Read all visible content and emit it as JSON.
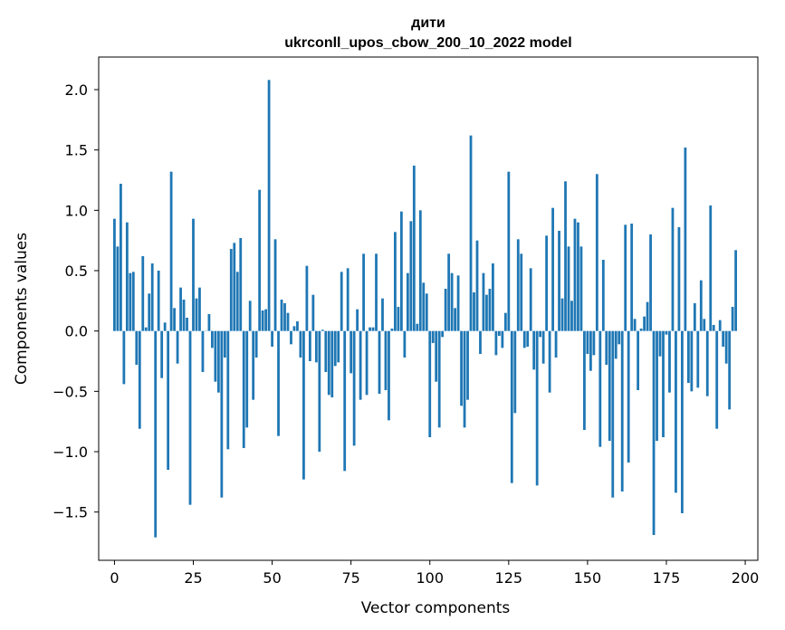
{
  "chart_data": {
    "type": "bar",
    "title": "дити",
    "subtitle": "ukrconll_upos_cbow_200_10_2022 model",
    "xlabel": "Vector components",
    "ylabel": "Components values",
    "xlim": [
      -5,
      204
    ],
    "ylim": [
      -1.9,
      2.27
    ],
    "xticks": [
      0,
      25,
      50,
      75,
      100,
      125,
      150,
      175,
      200
    ],
    "yticks": [
      -1.5,
      -1.0,
      -0.5,
      0.0,
      0.5,
      1.0,
      1.5,
      2.0
    ],
    "bar_color": "#1f77b4",
    "grid": false,
    "legend": "none",
    "values": [
      0.93,
      0.7,
      1.22,
      -0.44,
      0.9,
      0.48,
      0.49,
      -0.28,
      -0.81,
      0.62,
      0.03,
      0.31,
      0.56,
      -1.71,
      0.5,
      -0.39,
      0.07,
      -1.15,
      1.32,
      0.19,
      -0.27,
      0.36,
      0.26,
      0.11,
      -1.44,
      0.93,
      0.27,
      0.36,
      -0.34,
      0.0,
      0.14,
      -0.14,
      -0.42,
      -0.51,
      -1.38,
      -0.22,
      -0.98,
      0.68,
      0.73,
      0.49,
      0.77,
      -0.97,
      -0.8,
      0.25,
      -0.57,
      -0.22,
      1.17,
      0.17,
      0.18,
      2.08,
      -0.13,
      0.76,
      -0.87,
      0.26,
      0.23,
      0.15,
      -0.11,
      0.04,
      0.08,
      -0.22,
      -1.23,
      0.54,
      -0.25,
      0.3,
      -0.26,
      -1.0,
      0.01,
      -0.34,
      -0.53,
      -0.55,
      -0.29,
      -0.26,
      0.49,
      -1.16,
      0.52,
      -0.35,
      -0.95,
      0.18,
      -0.57,
      0.64,
      -0.53,
      0.03,
      0.03,
      0.64,
      -0.52,
      0.27,
      -0.49,
      -0.74,
      0.02,
      0.82,
      0.2,
      0.99,
      -0.22,
      0.48,
      0.91,
      1.37,
      0.06,
      1.0,
      0.4,
      0.31,
      -0.88,
      -0.1,
      -0.42,
      -0.8,
      -0.05,
      0.35,
      0.64,
      0.48,
      0.19,
      0.46,
      -0.62,
      -0.8,
      -0.57,
      1.62,
      0.32,
      0.75,
      -0.19,
      0.48,
      0.3,
      0.35,
      0.56,
      -0.2,
      -0.04,
      -0.14,
      0.15,
      1.32,
      -1.26,
      -0.68,
      0.76,
      0.64,
      -0.14,
      -0.13,
      0.52,
      -0.32,
      -1.28,
      -0.05,
      -0.27,
      0.79,
      -0.51,
      1.02,
      -0.22,
      0.83,
      0.27,
      1.24,
      0.7,
      0.25,
      0.93,
      0.9,
      0.7,
      -0.82,
      -0.19,
      -0.33,
      -0.2,
      1.3,
      -0.96,
      0.59,
      -0.28,
      -0.91,
      -1.38,
      -0.23,
      -0.11,
      -1.33,
      0.88,
      -1.09,
      0.89,
      0.1,
      -0.49,
      0.02,
      0.12,
      0.24,
      0.8,
      -1.69,
      -0.91,
      -0.21,
      -0.88,
      -0.03,
      -0.51,
      1.02,
      -1.34,
      0.86,
      -1.51,
      1.52,
      -0.43,
      -0.5,
      0.23,
      -0.47,
      0.42,
      0.1,
      -0.54,
      1.04,
      0.05,
      -0.81,
      0.09,
      -0.13,
      -0.27,
      -0.65,
      0.2,
      0.67
    ]
  }
}
